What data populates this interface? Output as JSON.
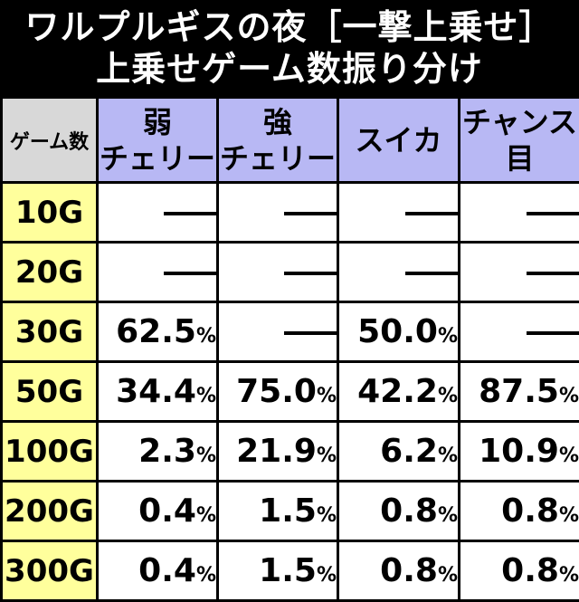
{
  "title": {
    "line1": "ワルプルギスの夜［一撃上乗せ］",
    "line2": "上乗せゲーム数振り分け"
  },
  "table": {
    "corner_label": "ゲーム数",
    "columns": [
      {
        "line1": "弱",
        "line2": "チェリー"
      },
      {
        "line1": "強",
        "line2": "チェリー"
      },
      {
        "line1": "スイカ",
        "line2": ""
      },
      {
        "line1": "チャンス",
        "line2": "目"
      }
    ],
    "rows": [
      {
        "game": "10G",
        "values": [
          null,
          null,
          null,
          null
        ]
      },
      {
        "game": "20G",
        "values": [
          null,
          null,
          null,
          null
        ]
      },
      {
        "game": "30G",
        "values": [
          "62.5",
          null,
          "50.0",
          null
        ]
      },
      {
        "game": "50G",
        "values": [
          "34.4",
          "75.0",
          "42.2",
          "87.5"
        ]
      },
      {
        "game": "100G",
        "values": [
          "2.3",
          "21.9",
          "6.2",
          "10.9"
        ]
      },
      {
        "game": "200G",
        "values": [
          "0.4",
          "1.5",
          "0.8",
          "0.8"
        ]
      },
      {
        "game": "300G",
        "values": [
          "0.4",
          "1.5",
          "0.8",
          "0.8"
        ]
      }
    ],
    "percent_sign": "%",
    "empty_marker": "—"
  },
  "colors": {
    "title_bg": "#000000",
    "title_text": "#ffffff",
    "header_bg": "#b8b8f4",
    "corner_bg": "#d8d8d8",
    "game_col_bg": "#ffff9c",
    "cell_bg": "#ffffff",
    "border": "#000000"
  }
}
